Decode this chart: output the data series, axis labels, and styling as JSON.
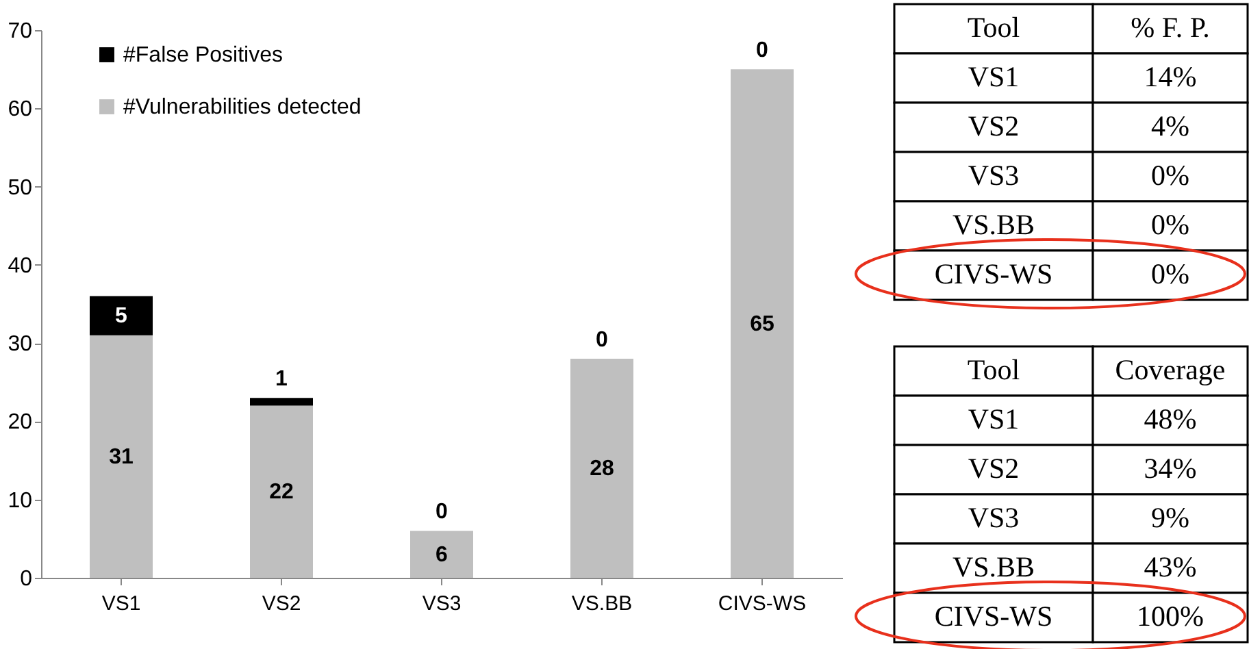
{
  "chart_data": [
    {
      "type": "bar",
      "categories": [
        "VS1",
        "VS2",
        "VS3",
        "VS.BB",
        "CIVS-WS"
      ],
      "stacked": true,
      "data_labels": true,
      "legend": "top left",
      "ylim": [
        0,
        70
      ],
      "yticks": [
        0,
        10,
        20,
        30,
        40,
        50,
        60,
        70
      ],
      "series": [
        {
          "name": "#Vulnerabilities detected",
          "color": "#bfbfbf",
          "values": [
            31,
            22,
            6,
            28,
            65
          ]
        },
        {
          "name": "#False Positives",
          "color": "#000000",
          "values": [
            5,
            1,
            0,
            0,
            0
          ]
        }
      ]
    },
    {
      "type": "other",
      "annotations": [
        "Tool",
        "% F. P.",
        "VS1",
        "14%",
        "VS2",
        "4%",
        "VS3",
        "0%",
        "VS.BB",
        "0%",
        "CIVS-WS",
        "0%"
      ]
    },
    {
      "type": "other",
      "annotations": [
        "Tool",
        "Coverage",
        "VS1",
        "48%",
        "VS2",
        "34%",
        "VS3",
        "9%",
        "VS.BB",
        "43%",
        "CIVS-WS",
        "100%"
      ]
    }
  ]
}
